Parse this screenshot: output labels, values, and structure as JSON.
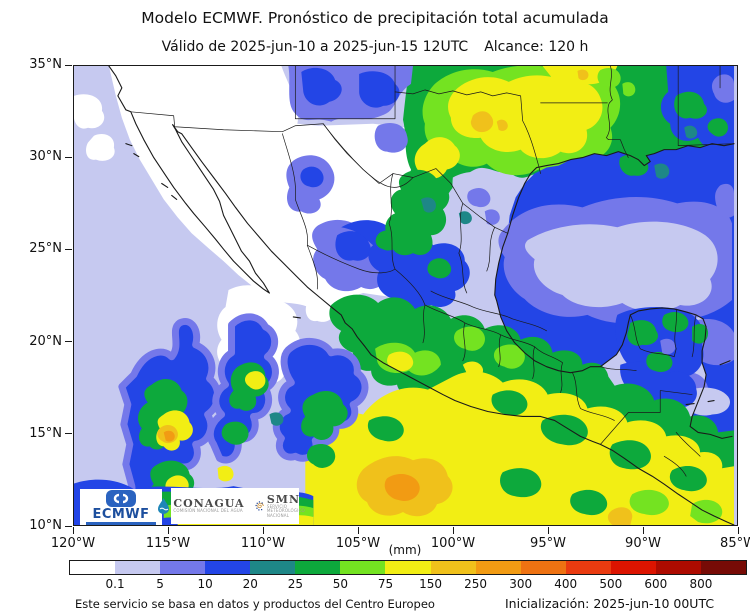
{
  "header": {
    "title": "Modelo ECMWF. Pronóstico de precipitación total acumulada",
    "valid_range": "Válido de 2025-jun-10 a 2025-jun-15 12UTC",
    "horizon": "Alcance: 120 h"
  },
  "axes": {
    "y_ticks": [
      "35°N",
      "30°N",
      "25°N",
      "20°N",
      "15°N",
      "10°N"
    ],
    "x_ticks": [
      "120°W",
      "115°W",
      "110°W",
      "105°W",
      "100°W",
      "95°W",
      "90°W",
      "85°W"
    ]
  },
  "colorbar": {
    "unit": "(mm)",
    "tick_labels": [
      "0.1",
      "5",
      "10",
      "20",
      "25",
      "50",
      "75",
      "150",
      "250",
      "300",
      "400",
      "500",
      "600",
      "800"
    ],
    "colors": [
      "#ffffff",
      "#c6c9f0",
      "#7478ea",
      "#2345e6",
      "#1e8787",
      "#0da93c",
      "#74e321",
      "#f2ee14",
      "#f0c11b",
      "#f29b13",
      "#ee7212",
      "#ea3b10",
      "#dc1400",
      "#ad0b00",
      "#770b06"
    ]
  },
  "logos": {
    "ecmwf": "ECMWF",
    "conagua": "CONAGUA",
    "conagua_sub": "COMISIÓN NACIONAL DEL AGUA",
    "smn": "SMN",
    "smn_sub": "SERVICIO METEOROLÓGICO NACIONAL"
  },
  "footer": {
    "credit": "Este servicio se basa en datos y productos del Centro Europeo",
    "init": "Inicialización: 2025-jun-10 00UTC"
  },
  "chart_data": {
    "type": "heatmap",
    "title": "Modelo ECMWF. Pronóstico de precipitación total acumulada",
    "region": "México y alrededores (120°W–85°W, 10°N–35°N)",
    "scale_mm_band_edges": [
      0.1,
      5,
      10,
      20,
      25,
      50,
      75,
      150,
      250,
      300,
      400,
      500,
      600,
      800
    ],
    "legend_position": "bottom",
    "notable_features": [
      {
        "area": "Texas (EUA)",
        "approx_mm": "75–150 con núcleos de 150–250"
      },
      {
        "area": "Noroeste de México y Baja California",
        "approx_mm": "< 0.1"
      },
      {
        "area": "Norte-centro de México (Chihuahua–Zacatecas)",
        "approx_mm": "5–20"
      },
      {
        "area": "Centro y sur de México",
        "approx_mm": "25–150"
      },
      {
        "area": "Costa del Pacífico sur y océano adyacente",
        "approx_mm": "75–300"
      },
      {
        "area": "Golfo de México (centro)",
        "approx_mm": "0.1–10"
      },
      {
        "area": "Península de Yucatán",
        "approx_mm": "10–50"
      },
      {
        "area": "Pacífico suroeste (plumas convectivas)",
        "approx_mm": "10–300"
      }
    ]
  }
}
